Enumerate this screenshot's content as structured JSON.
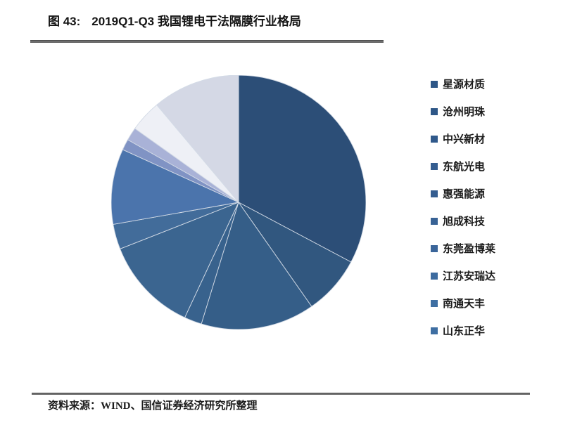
{
  "figure": {
    "title_prefix": "图 43:",
    "title_text": "2019Q1-Q3 我国锂电干法隔膜行业格局",
    "source": "资料来源：WIND、国信证券经济研究所整理"
  },
  "colors": {
    "rule": "#6d6d6d",
    "title_text": "#141414",
    "slice_border": "#d3dbe6",
    "background": "#ffffff"
  },
  "legend": {
    "position": "right",
    "items": [
      {
        "label": "星源材质",
        "marker_color": "#2e5787"
      },
      {
        "label": "沧州明珠",
        "marker_color": "#2e5787"
      },
      {
        "label": "中兴新材",
        "marker_color": "#30598b"
      },
      {
        "label": "东航光电",
        "marker_color": "#345d90"
      },
      {
        "label": "惠强能源",
        "marker_color": "#345d90"
      },
      {
        "label": "旭成科技",
        "marker_color": "#386295"
      },
      {
        "label": "东莞盈博莱",
        "marker_color": "#3a659a"
      },
      {
        "label": "江苏安瑞达",
        "marker_color": "#3d6b9f"
      },
      {
        "label": "南通天丰",
        "marker_color": "#3e6ea2"
      },
      {
        "label": "山东正华",
        "marker_color": "#3e6ea2"
      }
    ]
  },
  "chart_data": {
    "type": "pie",
    "title": "2019Q1-Q3 我国锂电干法隔膜行业格局",
    "start_angle_deg": 0,
    "direction": "clockwise",
    "legend_position": "right",
    "note": "percent values estimated from wedge angles; last pale wedge is rendered in the pie but has no visible legend label in the screenshot",
    "slices": [
      {
        "label": "星源材质",
        "percent": 32.8,
        "sweep_deg": 118.0,
        "color": "#2c4e77"
      },
      {
        "label": "沧州明珠",
        "percent": 7.5,
        "sweep_deg": 27.0,
        "color": "#31577f"
      },
      {
        "label": "中兴新材",
        "percent": 14.4,
        "sweep_deg": 52.0,
        "color": "#355e88"
      },
      {
        "label": "东航光电",
        "percent": 2.2,
        "sweep_deg": 8.0,
        "color": "#38628d"
      },
      {
        "label": "惠强能源",
        "percent": 12.1,
        "sweep_deg": 43.5,
        "color": "#3b6590"
      },
      {
        "label": "旭成科技",
        "percent": 3.2,
        "sweep_deg": 11.5,
        "color": "#426c9a"
      },
      {
        "label": "东莞盈博莱",
        "percent": 9.6,
        "sweep_deg": 34.5,
        "color": "#4b74ac"
      },
      {
        "label": "江苏安瑞达",
        "percent": 1.4,
        "sweep_deg": 5.0,
        "color": "#8093c4"
      },
      {
        "label": "南通天丰",
        "percent": 1.7,
        "sweep_deg": 6.0,
        "color": "#a9b2d7"
      },
      {
        "label": "山东正华",
        "percent": 4.0,
        "sweep_deg": 14.5,
        "color": "#eef0f6"
      },
      {
        "label": "",
        "percent": 11.1,
        "sweep_deg": 40.0,
        "color": "#d4d8e5"
      }
    ]
  }
}
